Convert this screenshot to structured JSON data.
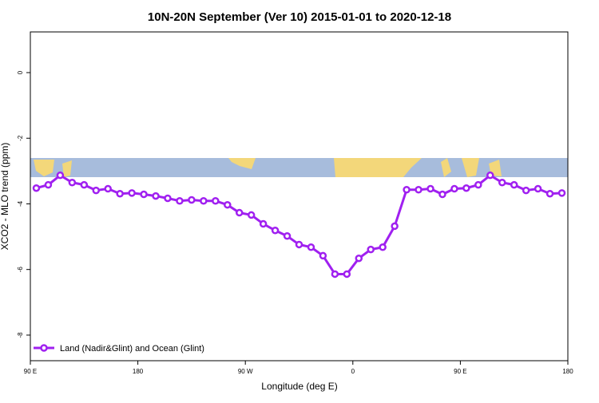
{
  "chart_data": {
    "type": "line",
    "title": "10N-20N September (Ver 10)   2015-01-01 to 2020-12-18",
    "x_label": "Longitude (deg E)",
    "y_label": "XCO2 - MLO trend (ppm)",
    "xlim": [
      90,
      540
    ],
    "ylim": [
      -8.78,
      1.24
    ],
    "xticks": [
      {
        "value": 90,
        "label": "90 E"
      },
      {
        "value": 180,
        "label": "180"
      },
      {
        "value": 270,
        "label": "90 W"
      },
      {
        "value": 360,
        "label": "0"
      },
      {
        "value": 450,
        "label": "90 E"
      },
      {
        "value": 540,
        "label": "180"
      }
    ],
    "yticks": [
      0,
      -2,
      -4,
      -6,
      -8
    ],
    "legend_position": "bottom-left",
    "series": [
      {
        "name": "Land (Nadir&Glint) and Ocean (Glint)",
        "color": "#a020f0",
        "x": [
          95,
          105,
          115,
          125,
          135,
          145,
          155,
          165,
          175,
          185,
          195,
          205,
          215,
          225,
          235,
          245,
          255,
          265,
          275,
          285,
          295,
          305,
          315,
          325,
          335,
          345,
          355,
          365,
          375,
          385,
          395,
          405,
          415,
          425,
          435,
          445,
          455,
          465,
          475,
          485,
          495,
          505,
          515,
          525,
          535
        ],
        "values": [
          -3.52,
          -3.42,
          -3.13,
          -3.35,
          -3.42,
          -3.59,
          -3.54,
          -3.69,
          -3.67,
          -3.71,
          -3.76,
          -3.83,
          -3.91,
          -3.88,
          -3.91,
          -3.91,
          -4.03,
          -4.27,
          -4.34,
          -4.61,
          -4.81,
          -4.98,
          -5.24,
          -5.32,
          -5.58,
          -6.14,
          -6.14,
          -5.66,
          -5.39,
          -5.32,
          -4.68,
          -3.57,
          -3.57,
          -3.54,
          -3.71,
          -3.54,
          -3.52,
          -3.42,
          -3.13,
          -3.35,
          -3.42,
          -3.59,
          -3.54,
          -3.69,
          -3.67
        ]
      }
    ]
  }
}
